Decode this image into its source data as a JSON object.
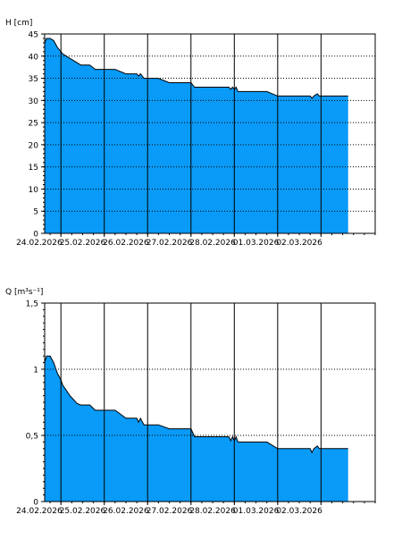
{
  "chart_data": [
    {
      "type": "area",
      "ylabel": "H [cm]",
      "ylim": [
        0,
        45
      ],
      "y_ticks": [
        0,
        5,
        10,
        15,
        20,
        25,
        30,
        35,
        40,
        45
      ],
      "y_tick_labels": [
        "0",
        "5",
        "10",
        "15",
        "20",
        "25",
        "30",
        "35",
        "40",
        "45"
      ],
      "x_range": [
        "2026-02-23T15:00",
        "2026-03-03T06:00"
      ],
      "x_ticks": [
        "2026-02-24",
        "2026-02-25",
        "2026-02-26",
        "2026-02-27",
        "2026-02-28",
        "2026-03-01",
        "2026-03-02"
      ],
      "x_tick_labels": [
        "24.02.2026",
        "25.02.2026",
        "26.02.2026",
        "27.02.2026",
        "28.02.2026",
        "01.03.2026",
        "02.03.2026"
      ],
      "grid": "dotted horizontal at each y tick, solid vertical at midnight",
      "fill_color": "#0A9AF7",
      "line_color": "#000000",
      "series": [
        {
          "x": [
            "2026-02-23T15:00",
            "2026-02-23T16:00",
            "2026-02-23T18:00",
            "2026-02-23T20:00",
            "2026-02-23T22:00",
            "2026-02-24T00:00",
            "2026-02-24T01:00",
            "2026-02-24T03:00",
            "2026-02-24T05:00",
            "2026-02-24T07:00",
            "2026-02-24T09:00",
            "2026-02-24T11:00",
            "2026-02-24T13:00",
            "2026-02-24T16:00",
            "2026-02-24T19:00",
            "2026-02-24T23:00",
            "2026-02-25T06:00",
            "2026-02-25T12:00",
            "2026-02-25T18:00",
            "2026-02-25T19:00",
            "2026-02-25T20:00",
            "2026-02-25T22:00",
            "2026-02-26T06:00",
            "2026-02-26T12:00",
            "2026-02-26T18:00",
            "2026-02-27T00:00",
            "2026-02-27T01:00",
            "2026-02-27T02:00",
            "2026-02-27T12:00",
            "2026-02-27T21:00",
            "2026-02-27T22:00",
            "2026-02-27T23:00",
            "2026-02-28T00:00",
            "2026-02-28T01:00",
            "2026-02-28T02:00",
            "2026-02-28T06:00",
            "2026-02-28T12:00",
            "2026-02-28T18:00",
            "2026-03-01T00:00",
            "2026-03-01T06:00",
            "2026-03-01T12:00",
            "2026-03-01T18:00",
            "2026-03-01T19:00",
            "2026-03-01T20:00",
            "2026-03-01T22:00",
            "2026-03-01T23:00",
            "2026-03-02T00:00",
            "2026-03-02T06:00",
            "2026-03-02T12:00",
            "2026-03-02T15:00"
          ],
          "y": [
            43,
            44,
            44,
            43.5,
            42,
            41,
            40.5,
            40,
            39.5,
            39,
            38.5,
            38,
            38,
            38,
            37,
            37,
            37,
            36,
            36,
            35.5,
            36,
            35,
            35,
            34,
            34,
            34,
            33.5,
            33,
            33,
            33,
            32.5,
            33,
            32.5,
            33,
            32,
            32,
            32,
            32,
            31,
            31,
            31,
            31,
            30.5,
            31,
            31.5,
            31,
            31,
            31,
            31,
            31
          ]
        }
      ]
    },
    {
      "type": "area",
      "ylabel": "Q [m³s⁻¹]",
      "ylim": [
        0,
        1.5
      ],
      "y_ticks": [
        0,
        0.5,
        1,
        1.5
      ],
      "y_tick_labels": [
        "0",
        "0,5",
        "1",
        "1,5"
      ],
      "x_range": [
        "2026-02-23T15:00",
        "2026-03-03T06:00"
      ],
      "x_ticks": [
        "2026-02-24",
        "2026-02-25",
        "2026-02-26",
        "2026-02-27",
        "2026-02-28",
        "2026-03-01",
        "2026-03-02"
      ],
      "x_tick_labels": [
        "24.02.2026",
        "25.02.2026",
        "26.02.2026",
        "27.02.2026",
        "28.02.2026",
        "01.03.2026",
        "02.03.2026"
      ],
      "grid": "dotted horizontal at each labelled y tick, solid vertical at midnight",
      "fill_color": "#0A9AF7",
      "line_color": "#000000",
      "series": [
        {
          "x": [
            "2026-02-23T15:00",
            "2026-02-23T16:00",
            "2026-02-23T18:00",
            "2026-02-23T20:00",
            "2026-02-23T22:00",
            "2026-02-24T00:00",
            "2026-02-24T01:00",
            "2026-02-24T03:00",
            "2026-02-24T05:00",
            "2026-02-24T07:00",
            "2026-02-24T09:00",
            "2026-02-24T11:00",
            "2026-02-24T13:00",
            "2026-02-24T16:00",
            "2026-02-24T19:00",
            "2026-02-24T23:00",
            "2026-02-25T06:00",
            "2026-02-25T12:00",
            "2026-02-25T18:00",
            "2026-02-25T19:00",
            "2026-02-25T20:00",
            "2026-02-25T22:00",
            "2026-02-26T06:00",
            "2026-02-26T12:00",
            "2026-02-26T18:00",
            "2026-02-27T00:00",
            "2026-02-27T01:00",
            "2026-02-27T02:00",
            "2026-02-27T12:00",
            "2026-02-27T21:00",
            "2026-02-27T22:00",
            "2026-02-27T23:00",
            "2026-02-28T00:00",
            "2026-02-28T01:00",
            "2026-02-28T02:00",
            "2026-02-28T06:00",
            "2026-02-28T12:00",
            "2026-02-28T18:00",
            "2026-03-01T00:00",
            "2026-03-01T06:00",
            "2026-03-01T12:00",
            "2026-03-01T18:00",
            "2026-03-01T19:00",
            "2026-03-01T20:00",
            "2026-03-01T22:00",
            "2026-03-01T23:00",
            "2026-03-02T00:00",
            "2026-03-02T06:00",
            "2026-03-02T12:00",
            "2026-03-02T15:00"
          ],
          "y": [
            1.05,
            1.1,
            1.1,
            1.05,
            0.97,
            0.92,
            0.88,
            0.84,
            0.8,
            0.77,
            0.74,
            0.73,
            0.73,
            0.73,
            0.69,
            0.69,
            0.69,
            0.63,
            0.63,
            0.6,
            0.63,
            0.58,
            0.58,
            0.55,
            0.55,
            0.55,
            0.52,
            0.49,
            0.49,
            0.49,
            0.46,
            0.49,
            0.46,
            0.49,
            0.45,
            0.45,
            0.45,
            0.45,
            0.4,
            0.4,
            0.4,
            0.4,
            0.37,
            0.4,
            0.42,
            0.4,
            0.4,
            0.4,
            0.4,
            0.4
          ]
        }
      ]
    }
  ]
}
